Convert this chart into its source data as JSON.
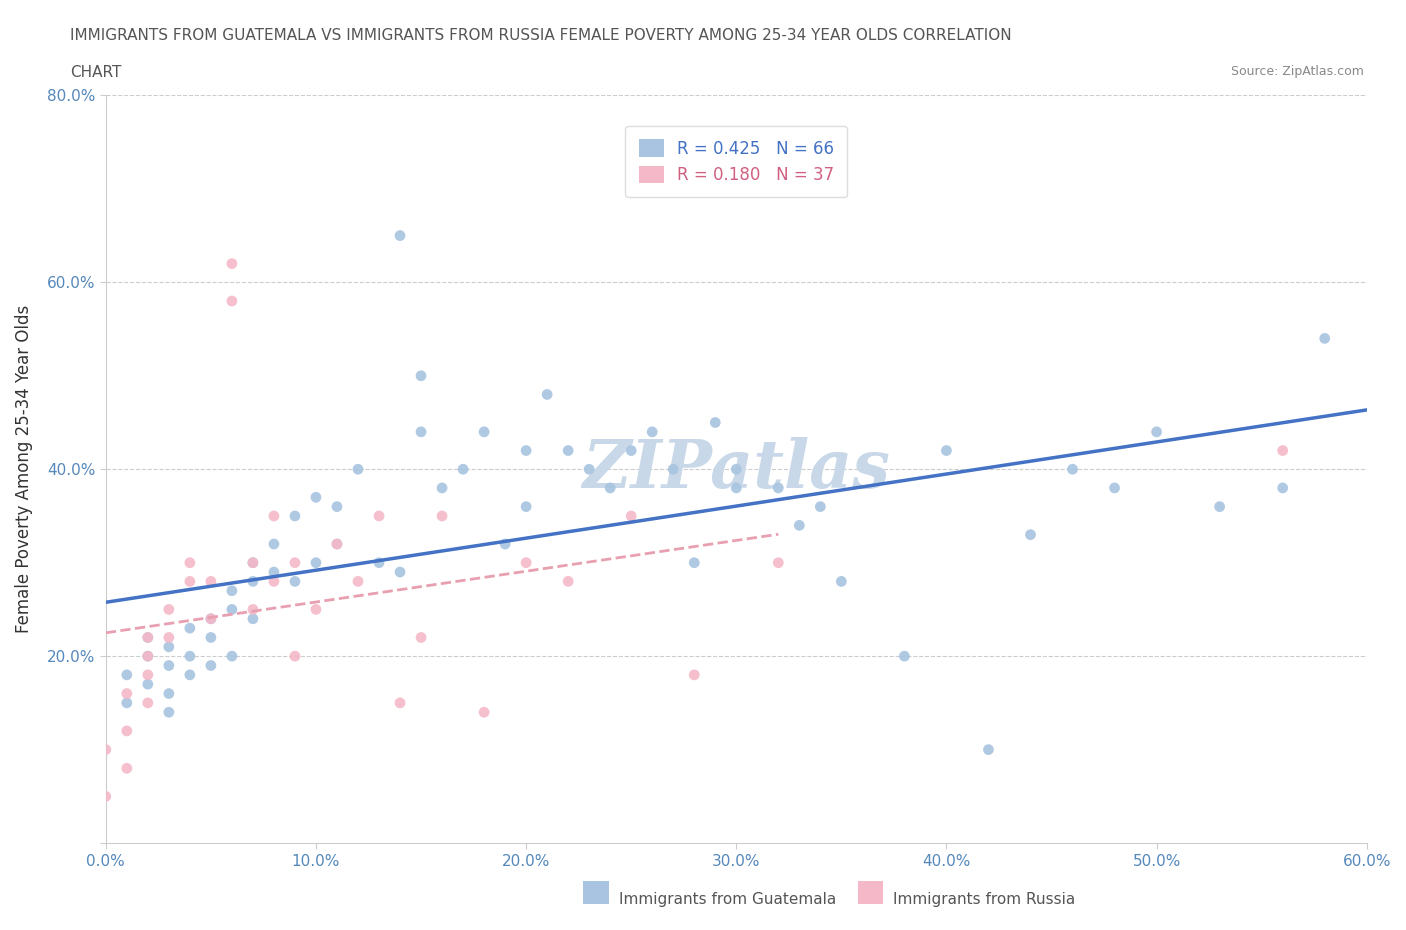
{
  "title_line1": "IMMIGRANTS FROM GUATEMALA VS IMMIGRANTS FROM RUSSIA FEMALE POVERTY AMONG 25-34 YEAR OLDS CORRELATION",
  "title_line2": "CHART",
  "source": "Source: ZipAtlas.com",
  "ylabel": "Female Poverty Among 25-34 Year Olds",
  "xlim": [
    0.0,
    0.6
  ],
  "ylim": [
    0.0,
    0.8
  ],
  "R_guatemala": 0.425,
  "N_guatemala": 66,
  "R_russia": 0.18,
  "N_russia": 37,
  "color_guatemala": "#a8c4e0",
  "color_russia": "#f4b8c8",
  "line_color_guatemala": "#4472c4",
  "line_color_russia": "#e8a0b0",
  "text_color_guatemala": "#4472c4",
  "text_color_russia": "#d06080",
  "watermark_color": "#c8d8e8",
  "legend_color_guatemala": "#a8c4e0",
  "legend_color_russia": "#f4b8c8",
  "tick_color": "#5588bb",
  "grid_color": "#cccccc",
  "guatemala_x": [
    0.01,
    0.01,
    0.02,
    0.02,
    0.02,
    0.03,
    0.03,
    0.03,
    0.03,
    0.04,
    0.04,
    0.04,
    0.05,
    0.05,
    0.05,
    0.06,
    0.06,
    0.06,
    0.07,
    0.07,
    0.07,
    0.08,
    0.08,
    0.09,
    0.09,
    0.1,
    0.1,
    0.11,
    0.11,
    0.12,
    0.13,
    0.14,
    0.14,
    0.15,
    0.15,
    0.16,
    0.17,
    0.18,
    0.19,
    0.2,
    0.2,
    0.21,
    0.22,
    0.23,
    0.24,
    0.25,
    0.26,
    0.27,
    0.28,
    0.29,
    0.3,
    0.3,
    0.32,
    0.33,
    0.34,
    0.35,
    0.38,
    0.4,
    0.42,
    0.44,
    0.46,
    0.48,
    0.5,
    0.53,
    0.56,
    0.58
  ],
  "guatemala_y": [
    0.15,
    0.18,
    0.2,
    0.22,
    0.17,
    0.19,
    0.16,
    0.21,
    0.14,
    0.18,
    0.23,
    0.2,
    0.24,
    0.19,
    0.22,
    0.27,
    0.25,
    0.2,
    0.3,
    0.28,
    0.24,
    0.32,
    0.29,
    0.35,
    0.28,
    0.37,
    0.3,
    0.36,
    0.32,
    0.4,
    0.3,
    0.65,
    0.29,
    0.44,
    0.5,
    0.38,
    0.4,
    0.44,
    0.32,
    0.42,
    0.36,
    0.48,
    0.42,
    0.4,
    0.38,
    0.42,
    0.44,
    0.4,
    0.3,
    0.45,
    0.4,
    0.38,
    0.38,
    0.34,
    0.36,
    0.28,
    0.2,
    0.42,
    0.1,
    0.33,
    0.4,
    0.38,
    0.44,
    0.36,
    0.38,
    0.54
  ],
  "russia_x": [
    0.0,
    0.0,
    0.01,
    0.01,
    0.01,
    0.02,
    0.02,
    0.02,
    0.02,
    0.03,
    0.03,
    0.04,
    0.04,
    0.05,
    0.05,
    0.06,
    0.06,
    0.07,
    0.07,
    0.08,
    0.08,
    0.09,
    0.09,
    0.1,
    0.11,
    0.12,
    0.13,
    0.14,
    0.15,
    0.16,
    0.18,
    0.2,
    0.22,
    0.25,
    0.28,
    0.32,
    0.56
  ],
  "russia_y": [
    0.1,
    0.05,
    0.16,
    0.12,
    0.08,
    0.2,
    0.15,
    0.22,
    0.18,
    0.25,
    0.22,
    0.28,
    0.3,
    0.28,
    0.24,
    0.62,
    0.58,
    0.3,
    0.25,
    0.28,
    0.35,
    0.3,
    0.2,
    0.25,
    0.32,
    0.28,
    0.35,
    0.15,
    0.22,
    0.35,
    0.14,
    0.3,
    0.28,
    0.35,
    0.18,
    0.3,
    0.42
  ]
}
